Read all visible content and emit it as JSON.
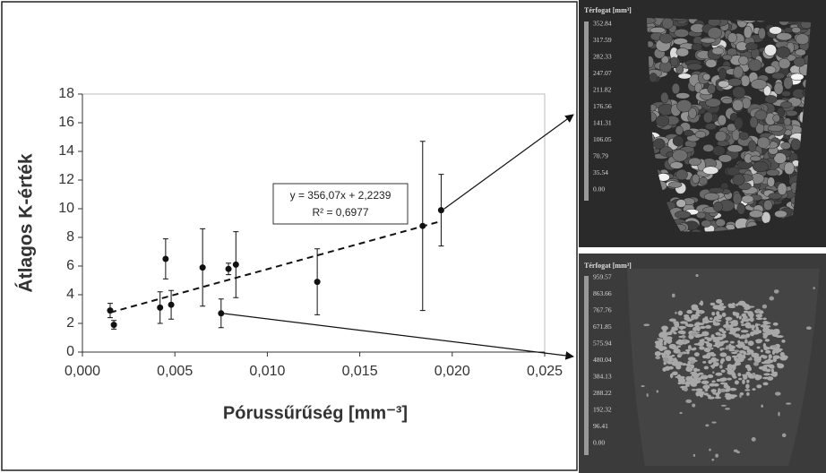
{
  "chart_data": {
    "type": "scatter",
    "xlabel": "Pórussűrűség [mm⁻³]",
    "ylabel": "Átlagos K-érték",
    "x": [
      0.0015,
      0.0017,
      0.0042,
      0.0045,
      0.0048,
      0.0065,
      0.0075,
      0.0079,
      0.0083,
      0.0127,
      0.0184,
      0.0194
    ],
    "values": [
      2.9,
      1.9,
      3.1,
      6.5,
      3.3,
      5.9,
      2.7,
      5.8,
      6.1,
      4.9,
      8.8,
      9.9
    ],
    "errors": [
      0.5,
      0.3,
      1.1,
      1.4,
      1.0,
      2.7,
      1.0,
      0.4,
      2.3,
      2.3,
      5.9,
      2.5
    ],
    "color": "#111111",
    "xlim": [
      0,
      0.025
    ],
    "xticks": [
      {
        "value": 0,
        "label": "0,000"
      },
      {
        "value": 0.005,
        "label": "0,005"
      },
      {
        "value": 0.01,
        "label": "0,010"
      },
      {
        "value": 0.015,
        "label": "0,015"
      },
      {
        "value": 0.02,
        "label": "0,020"
      },
      {
        "value": 0.025,
        "label": "0,025"
      }
    ],
    "ylim": [
      0,
      18
    ],
    "yticks": [
      0,
      2,
      4,
      6,
      8,
      10,
      12,
      14,
      16,
      18
    ],
    "trendline": {
      "slope": 356.07,
      "intercept": 2.2239,
      "label": "y = 356,07x + 2,2239",
      "r2_label": "R² = 0,6977"
    }
  },
  "panels": [
    {
      "title": "Térfogat [mm³]",
      "scale": [
        "352.84",
        "317.59",
        "282.33",
        "247.07",
        "211.82",
        "176.56",
        "141.31",
        "106.05",
        "70.79",
        "35.54",
        "0.00"
      ]
    },
    {
      "title": "Térfogat [mm³]",
      "scale": [
        "959.57",
        "863.66",
        "767.76",
        "671.85",
        "575.94",
        "480.04",
        "384.13",
        "288.22",
        "192.32",
        "96.41",
        "0.00"
      ]
    }
  ]
}
